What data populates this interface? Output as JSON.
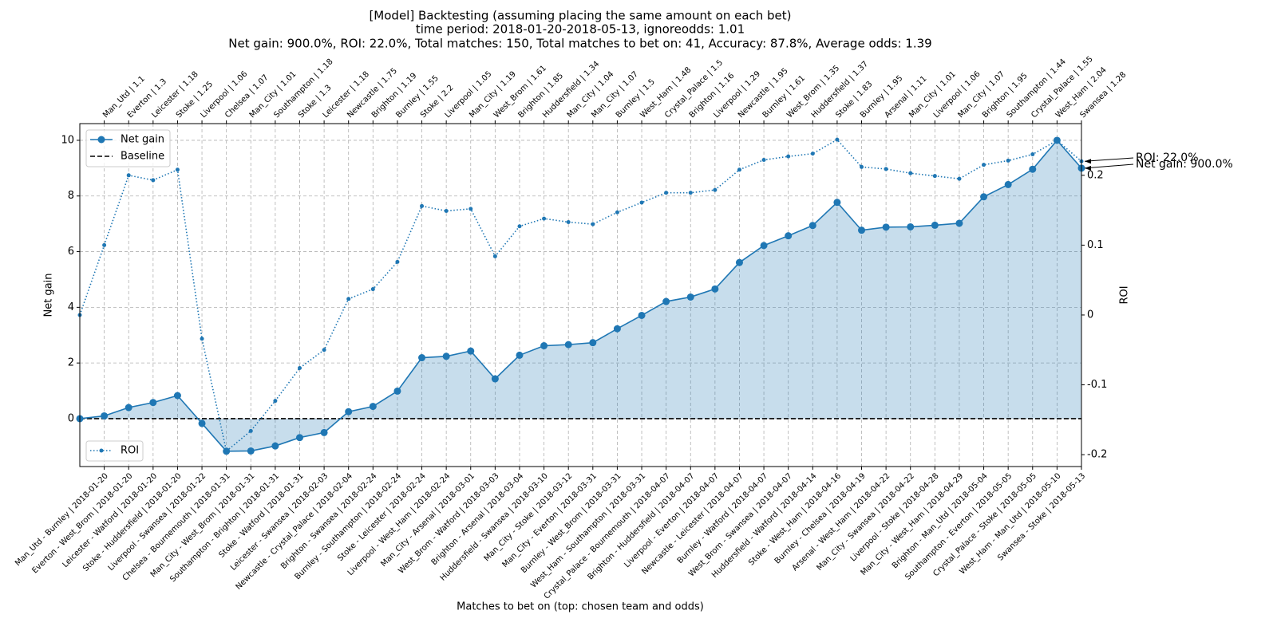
{
  "chart_data": {
    "type": "line",
    "title": [
      "[Model] Backtesting  (assuming placing the same amount on each bet)",
      "time period: 2018-01-20-2018-05-13, ignoreodds: 1.01",
      "Net gain: 900.0%, ROI: 22.0%, Total matches: 150, Total matches to bet on: 41, Accuracy: 87.8%, Average odds: 1.39"
    ],
    "xlabel": "Matches to bet on (top: chosen team and odds)",
    "ylabel": "Net gain",
    "y2label": "ROI",
    "categories": [
      "Man_Utd - Burnley | 2018-01-20",
      "Everton - West_Brom | 2018-01-20",
      "Leicester - Watford | 2018-01-20",
      "Stoke - Huddersfield | 2018-01-20",
      "Liverpool - Swansea | 2018-01-22",
      "Chelsea - Bournemouth | 2018-01-31",
      "Man_City - West_Brom | 2018-01-31",
      "Southampton - Brighton | 2018-01-31",
      "Stoke - Watford | 2018-01-31",
      "Leicester - Swansea | 2018-02-03",
      "Newcastle - Crystal_Palace | 2018-02-04",
      "Brighton - Swansea | 2018-02-24",
      "Burnley - Southampton | 2018-02-24",
      "Stoke - Leicester | 2018-02-24",
      "Liverpool - West_Ham | 2018-02-24",
      "Man_City - Arsenal | 2018-03-01",
      "West_Brom - Watford | 2018-03-03",
      "Brighton - Arsenal | 2018-03-04",
      "Huddersfield - Swansea | 2018-03-10",
      "Man_City - Stoke | 2018-03-12",
      "Man_City - Everton | 2018-03-31",
      "Burnley - West_Brom | 2018-03-31",
      "West_Ham - Southampton | 2018-03-31",
      "Crystal_Palace - Bournemouth | 2018-04-07",
      "Brighton - Huddersfield | 2018-04-07",
      "Liverpool - Everton | 2018-04-07",
      "Newcastle - Leicester | 2018-04-07",
      "Burnley - Watford | 2018-04-07",
      "West_Brom - Swansea | 2018-04-07",
      "Huddersfield - Watford | 2018-04-14",
      "Stoke - West_Ham | 2018-04-16",
      "Burnley - Chelsea | 2018-04-19",
      "Arsenal - West_Ham | 2018-04-22",
      "Man_City - Swansea | 2018-04-22",
      "Liverpool - Stoke | 2018-04-28",
      "Man_City - West_Ham | 2018-04-29",
      "Brighton - Man_Utd | 2018-05-04",
      "Southampton - Everton | 2018-05-05",
      "Crystal_Palace - Stoke | 2018-05-05",
      "West_Ham - Man_Utd | 2018-05-10",
      "Swansea - Stoke | 2018-05-13"
    ],
    "top_categories": [
      "Man_Utd | 1.1",
      "Everton | 1.3",
      "Leicester | 1.18",
      "Stoke | 1.25",
      "Liverpool | 1.06",
      "Chelsea | 1.07",
      "Man_City | 1.01",
      "Southampton | 1.18",
      "Stoke | 1.3",
      "Leicester | 1.18",
      "Newcastle | 1.75",
      "Brighton | 1.19",
      "Burnley | 1.55",
      "Stoke | 2.2",
      "Liverpool | 1.05",
      "Man_City | 1.19",
      "West_Brom | 1.61",
      "Brighton | 1.85",
      "Huddersfield | 1.34",
      "Man_City | 1.04",
      "Man_City | 1.07",
      "Burnley | 1.5",
      "West_Ham | 1.48",
      "Crystal_Palace | 1.5",
      "Brighton | 1.16",
      "Liverpool | 1.29",
      "Newcastle | 1.95",
      "Burnley | 1.61",
      "West_Brom | 1.35",
      "Huddersfield | 1.37",
      "Stoke | 1.83",
      "Burnley | 1.95",
      "Arsenal | 1.11",
      "Man_City | 1.01",
      "Liverpool | 1.06",
      "Man_City | 1.07",
      "Brighton | 1.95",
      "Southampton | 1.44",
      "Crystal_Palace | 1.55",
      "West_Ham | 2.04",
      "Swansea | 1.28"
    ],
    "xlim": [
      0,
      41
    ],
    "ylim": [
      -1.72,
      10.6
    ],
    "yticks": [
      0,
      2,
      4,
      6,
      8,
      10
    ],
    "y2lim": [
      -0.217,
      0.274
    ],
    "y2ticks": [
      -0.2,
      -0.1,
      0.0,
      0.1,
      0.2
    ],
    "grid": true,
    "series": [
      {
        "name": "Net gain",
        "color": "#1f77b4",
        "values": [
          0.1,
          0.4,
          0.58,
          0.83,
          -0.17,
          -1.17,
          -1.16,
          -0.98,
          -0.68,
          -0.5,
          0.25,
          0.44,
          0.99,
          2.19,
          2.24,
          2.43,
          1.43,
          2.28,
          2.62,
          2.66,
          2.73,
          3.23,
          3.71,
          4.21,
          4.37,
          4.66,
          5.61,
          6.22,
          6.57,
          6.94,
          7.77,
          6.77,
          6.88,
          6.89,
          6.95,
          7.02,
          7.97,
          8.41,
          8.96,
          10.0,
          9.0
        ]
      },
      {
        "name": "ROI",
        "color": "#1f77b4",
        "axis": "y2",
        "values": [
          0.1,
          0.2,
          0.193,
          0.208,
          -0.034,
          -0.195,
          -0.166,
          -0.123,
          -0.076,
          -0.05,
          0.023,
          0.037,
          0.076,
          0.156,
          0.149,
          0.152,
          0.084,
          0.127,
          0.138,
          0.133,
          0.13,
          0.147,
          0.161,
          0.175,
          0.175,
          0.179,
          0.208,
          0.222,
          0.227,
          0.231,
          0.251,
          0.212,
          0.209,
          0.203,
          0.199,
          0.195,
          0.215,
          0.221,
          0.23,
          0.25,
          0.22
        ]
      }
    ],
    "baseline": {
      "name": "Baseline",
      "value": 0,
      "color": "#000000"
    },
    "annotations": [
      "ROI: 22.0%",
      "Net gain: 900.0%"
    ]
  }
}
